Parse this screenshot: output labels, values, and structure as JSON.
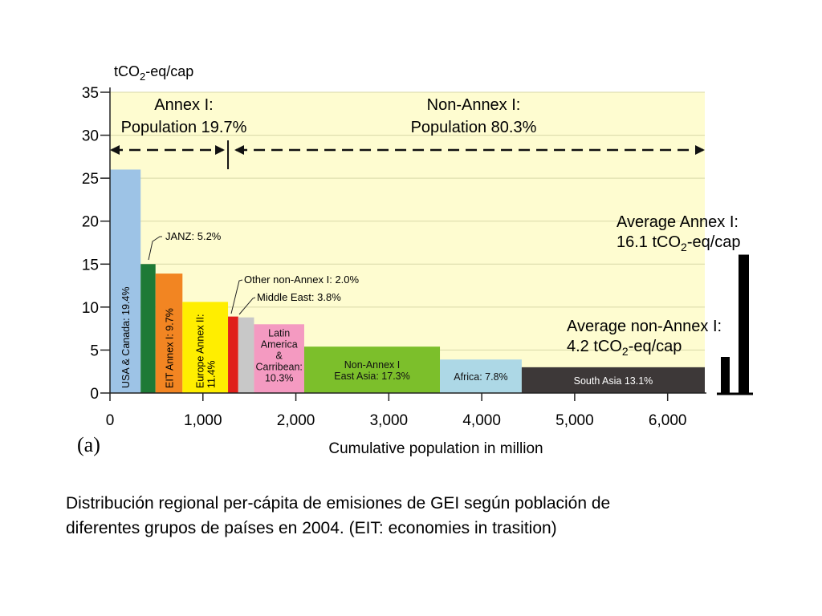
{
  "chart_data": {
    "type": "bar",
    "variant": "variable-width",
    "ylabel_parts": [
      "tCO",
      "2",
      "-eq/cap"
    ],
    "xlabel": "Cumulative population in million",
    "panel_label": "(a)",
    "ylim": [
      0,
      35
    ],
    "xlim": [
      0,
      6400
    ],
    "yticks": [
      "0",
      "5",
      "10",
      "15",
      "20",
      "25",
      "30",
      "35"
    ],
    "xticks": [
      "0",
      "1,000",
      "2,000",
      "3,000",
      "4,000",
      "5,000",
      "6,000"
    ],
    "grid": true,
    "bars": [
      {
        "label": "USA & Canada: 19.4%",
        "x0": 0,
        "x1": 330,
        "value": 26.0,
        "color": "#9dc3e6",
        "label_style": "vertical"
      },
      {
        "label": "JANZ: 5.2%",
        "x0": 330,
        "x1": 490,
        "value": 15.0,
        "color": "#1e7a36",
        "label_style": "callout"
      },
      {
        "label": "EIT Annex I: 9.7%",
        "x0": 490,
        "x1": 780,
        "value": 13.9,
        "color": "#f28522",
        "label_style": "vertical"
      },
      {
        "label": "Europe Annex II: 11.4%",
        "x0": 780,
        "x1": 1270,
        "value": 10.6,
        "color": "#ffee00",
        "label_style": "vertical"
      },
      {
        "label": "Other non-Annex I: 2.0%",
        "x0": 1270,
        "x1": 1380,
        "value": 8.9,
        "color": "#e0201b",
        "label_style": "callout"
      },
      {
        "label": "Middle East: 3.8%",
        "x0": 1380,
        "x1": 1550,
        "value": 8.8,
        "color": "#c8c8c8",
        "label_style": "callout"
      },
      {
        "label": "Latin America & Carribean: 10.3%",
        "x0": 1550,
        "x1": 2090,
        "value": 8.0,
        "color": "#f49ac1",
        "label_style": "inside"
      },
      {
        "label": "Non-Annex I East Asia: 17.3%",
        "x0": 2090,
        "x1": 3550,
        "value": 5.4,
        "color": "#7cbf2b",
        "label_style": "inside"
      },
      {
        "label": "Africa: 7.8%",
        "x0": 3550,
        "x1": 4430,
        "value": 3.9,
        "color": "#add8e6",
        "label_style": "inside"
      },
      {
        "label": "South Asia 13.1%",
        "x0": 4430,
        "x1": 6400,
        "value": 3.0,
        "color": "#3d3838",
        "label_style": "inside-light"
      }
    ],
    "bar_label_lines": {
      "USA & Canada: 19.4%": [
        "USA & Canada: 19.4%"
      ],
      "EIT Annex I: 9.7%": [
        "EIT Annex I: 9.7%"
      ],
      "Europe Annex II: 11.4%": [
        "Europe Annex II:",
        "11.4%"
      ],
      "Latin America & Carribean: 10.3%": [
        "Latin",
        "America",
        "&",
        "Carribean:",
        "10.3%"
      ],
      "Non-Annex I East Asia: 17.3%": [
        "Non-Annex I",
        "East Asia: 17.3%"
      ],
      "Africa: 7.8%": [
        "Africa: 7.8%"
      ],
      "South Asia 13.1%": [
        "South Asia 13.1%"
      ]
    },
    "groups": [
      {
        "title": "Annex I:",
        "subtitle": "Population 19.7%",
        "x0": 0,
        "x1": 1270
      },
      {
        "title": "Non-Annex I:",
        "subtitle": "Population 80.3%",
        "x0": 1270,
        "x1": 6400
      }
    ],
    "averages": [
      {
        "name": "Average Annex I:",
        "value": 16.1,
        "text": "16.1 tCO|2|-eq/cap"
      },
      {
        "name": "Average non-Annex I:",
        "value": 4.2,
        "text": "4.2 tCO|2|-eq/cap"
      }
    ],
    "colors": {
      "plot_background": "#fefcd0",
      "grid": "#d8d8a8"
    }
  },
  "caption": {
    "line1": "Distribución regional per-cápita de emisiones de GEI según población de",
    "line2": "diferentes grupos de países en 2004. (EIT: economies in trasition)"
  }
}
